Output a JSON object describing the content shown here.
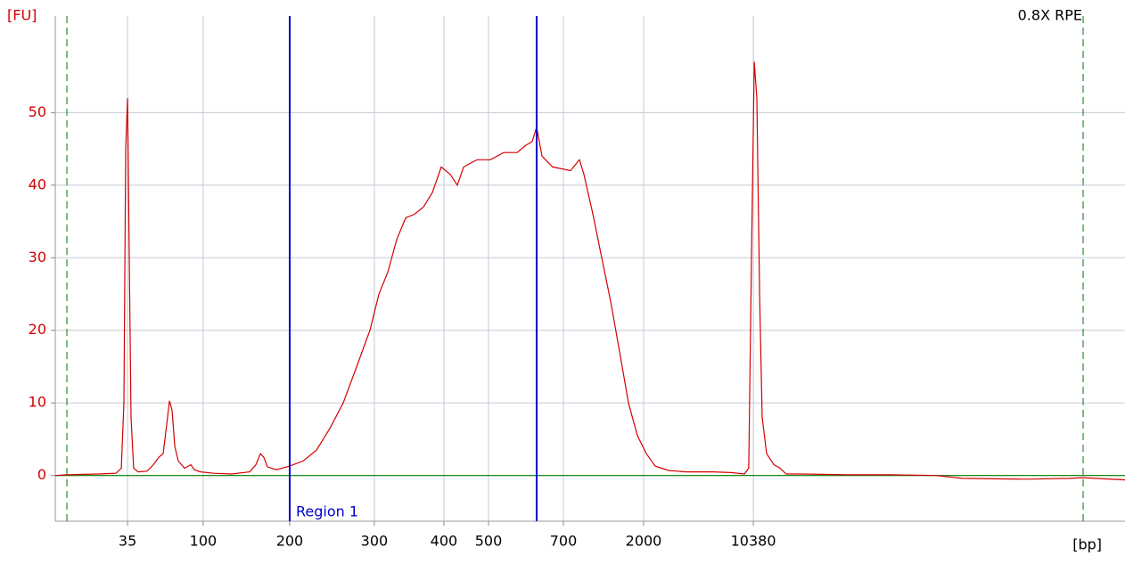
{
  "chart_data": {
    "type": "line",
    "title": "0.8X RPE",
    "y_label": "[FU]",
    "x_label": "[bp]",
    "color": "#d40000",
    "baseline_color": "#008000",
    "grid": true,
    "xlim": [
      40,
      110
    ],
    "ylim": [
      -6.3,
      63.3
    ],
    "yticks": [
      0,
      10,
      20,
      30,
      40,
      50
    ],
    "xticks": [
      {
        "value": 44.73,
        "label": "35"
      },
      {
        "value": 49.68,
        "label": "100"
      },
      {
        "value": 55.34,
        "label": "200"
      },
      {
        "value": 60.88,
        "label": "300"
      },
      {
        "value": 65.43,
        "label": "400"
      },
      {
        "value": 68.35,
        "label": "500"
      },
      {
        "value": 73.25,
        "label": "700"
      },
      {
        "value": 78.5,
        "label": "2000"
      },
      {
        "value": 85.68,
        "label": "10380"
      }
    ],
    "markers": [
      40.76,
      107.26
    ],
    "marker_color": "#2e8b2e",
    "region": {
      "label": "Region 1",
      "start": 55.34,
      "end": 71.5,
      "color": "#0000cc"
    },
    "x": [
      40.0,
      40.76,
      42.8,
      43.97,
      44.32,
      44.49,
      44.61,
      44.73,
      44.84,
      44.96,
      45.13,
      45.43,
      46.01,
      46.42,
      46.77,
      47.06,
      47.29,
      47.47,
      47.64,
      47.82,
      48.05,
      48.46,
      48.87,
      49.1,
      49.51,
      50.38,
      51.55,
      52.72,
      53.13,
      53.42,
      53.65,
      53.88,
      54.47,
      55.34,
      56.22,
      57.09,
      57.97,
      58.84,
      59.72,
      60.59,
      61.18,
      61.76,
      62.34,
      62.93,
      63.51,
      64.09,
      64.68,
      65.26,
      65.84,
      66.31,
      66.72,
      67.59,
      68.47,
      69.34,
      70.22,
      70.8,
      71.21,
      71.5,
      71.85,
      72.55,
      73.72,
      74.3,
      74.59,
      75.18,
      75.76,
      76.34,
      76.93,
      77.51,
      78.09,
      78.68,
      79.26,
      80.13,
      81.3,
      83.05,
      84.22,
      85.09,
      85.38,
      85.56,
      85.74,
      85.91,
      86.09,
      86.26,
      86.55,
      87.02,
      87.43,
      87.83,
      88.88,
      91.8,
      94.72,
      97.63,
      99.38,
      103.47,
      106.38,
      107.26,
      110.0
    ],
    "values": [
      0,
      0.1,
      0.2,
      0.3,
      1,
      10,
      45,
      52,
      30,
      8,
      1,
      0.5,
      0.6,
      1.5,
      2.5,
      3,
      7,
      10.3,
      9,
      4,
      2,
      1,
      1.5,
      0.8,
      0.5,
      0.3,
      0.2,
      0.5,
      1.5,
      3,
      2.5,
      1.2,
      0.8,
      1.3,
      2,
      3.5,
      6.5,
      10,
      15,
      20,
      25,
      28,
      32.5,
      35.5,
      36,
      37,
      39,
      42.5,
      41.5,
      40,
      42.5,
      43.5,
      43.5,
      44.5,
      44.5,
      45.5,
      46,
      48,
      44,
      42.5,
      42,
      43.5,
      41.5,
      36,
      30,
      24,
      17,
      10,
      5.5,
      3,
      1.3,
      0.7,
      0.5,
      0.5,
      0.4,
      0.2,
      1,
      30,
      57,
      52,
      25,
      8,
      3,
      1.5,
      1,
      0.2,
      0.2,
      0.1,
      0.1,
      0,
      -0.4,
      -0.5,
      -0.4,
      -0.3,
      -0.6
    ]
  }
}
